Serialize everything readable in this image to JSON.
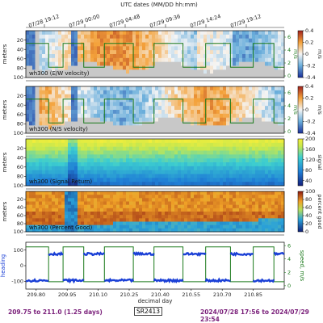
{
  "header": {
    "title": "UTC dates (MM/DD hh:mm)",
    "date_ticks": [
      "07/28 19:12",
      "07/29 00:00",
      "07/29 04:48",
      "07/29 09:36",
      "07/29 14:24",
      "07/29 19:12"
    ]
  },
  "chart_data": [
    {
      "type": "heatmap",
      "panel_label": "wh300 (E/W velocity)",
      "ylabel": "meters",
      "yticks": [
        20,
        40,
        60,
        80,
        100
      ],
      "ylim": [
        100,
        0
      ],
      "colorbar_label": "m/s",
      "colorbar_ticks": [
        0.4,
        0.2,
        0.0,
        -0.2,
        -0.4
      ],
      "colorbar_range": [
        -0.4,
        0.4
      ],
      "right_axis_label": "m/s",
      "right_axis_ticks": [
        6,
        4,
        2,
        0
      ],
      "overlay": "ship speed"
    },
    {
      "type": "heatmap",
      "panel_label": "wh300 (N/S velocity)",
      "ylabel": "meters",
      "yticks": [
        20,
        40,
        60,
        80,
        100
      ],
      "ylim": [
        100,
        0
      ],
      "colorbar_label": "m/s",
      "colorbar_ticks": [
        0.4,
        0.2,
        0.0,
        -0.2,
        -0.4
      ],
      "colorbar_range": [
        -0.4,
        0.4
      ],
      "right_axis_label": "m/s",
      "right_axis_ticks": [
        6,
        4,
        2,
        0
      ],
      "overlay": "ship speed"
    },
    {
      "type": "heatmap",
      "panel_label": "wh300 (Signal Return)",
      "ylabel": "meters",
      "yticks": [
        20,
        40,
        60,
        80,
        100
      ],
      "ylim": [
        100,
        0
      ],
      "colorbar_label": "signal",
      "colorbar_ticks": [
        200,
        160,
        120,
        80,
        40
      ],
      "colorbar_range": [
        20,
        200
      ]
    },
    {
      "type": "heatmap",
      "panel_label": "wh300 (Percent Good)",
      "ylabel": "meters",
      "yticks": [
        20,
        40,
        60,
        80,
        100
      ],
      "ylim": [
        100,
        0
      ],
      "colorbar_label": "percent good",
      "colorbar_ticks": [
        100,
        80,
        60,
        40,
        20,
        0
      ],
      "colorbar_range": [
        0,
        100
      ]
    },
    {
      "type": "line",
      "ylabel": "heading",
      "yticks": [
        100,
        0,
        -100
      ],
      "right_axis_label": "speed, m/s",
      "right_axis_ticks": [
        6,
        4,
        2,
        0
      ],
      "xlabel": "decimal day",
      "xticks": [
        209.8,
        209.95,
        210.1,
        210.25,
        210.4,
        210.55,
        210.7,
        210.85
      ],
      "xtick_labels": [
        "209.80",
        "209.95",
        "210.10",
        "210.25",
        "210.40",
        "210.55",
        "210.70",
        "210.85"
      ],
      "xlim": [
        209.75,
        211.0
      ],
      "series": [
        {
          "name": "",
          "color": "#1a3fd6",
          "segments": [
            {
              "x0": 209.75,
              "x1": 209.86,
              "level": "low"
            },
            {
              "x0": 209.86,
              "x1": 209.93,
              "level": "high"
            },
            {
              "x0": 209.93,
              "x1": 210.03,
              "level": "low"
            },
            {
              "x0": 210.03,
              "x1": 210.13,
              "level": "high"
            },
            {
              "x0": 210.13,
              "x1": 210.27,
              "level": "low"
            },
            {
              "x0": 210.27,
              "x1": 210.37,
              "level": "high"
            },
            {
              "x0": 210.37,
              "x1": 210.51,
              "level": "low"
            },
            {
              "x0": 210.51,
              "x1": 210.62,
              "level": "high"
            },
            {
              "x0": 210.62,
              "x1": 210.74,
              "level": "low"
            },
            {
              "x0": 210.74,
              "x1": 210.85,
              "level": "high"
            },
            {
              "x0": 210.85,
              "x1": 210.95,
              "level": "low"
            },
            {
              "x0": 210.95,
              "x1": 211.0,
              "level": "high"
            }
          ]
        },
        {
          "name": "",
          "color": "#1b7a1b",
          "note": "ship speed, m/s"
        }
      ]
    }
  ],
  "footer": {
    "range_text": "209.75 to 211.0 (1.25 days)",
    "instrument": "SR2413",
    "dates_text": "2024/07/28 17:56 to 2024/07/29 23:54"
  },
  "colors": {
    "footer_text": "#7a1f7a",
    "heading_line": "#1a3fd6",
    "speed_line": "#1b7a1b",
    "no_data": "#c8c8c8"
  }
}
